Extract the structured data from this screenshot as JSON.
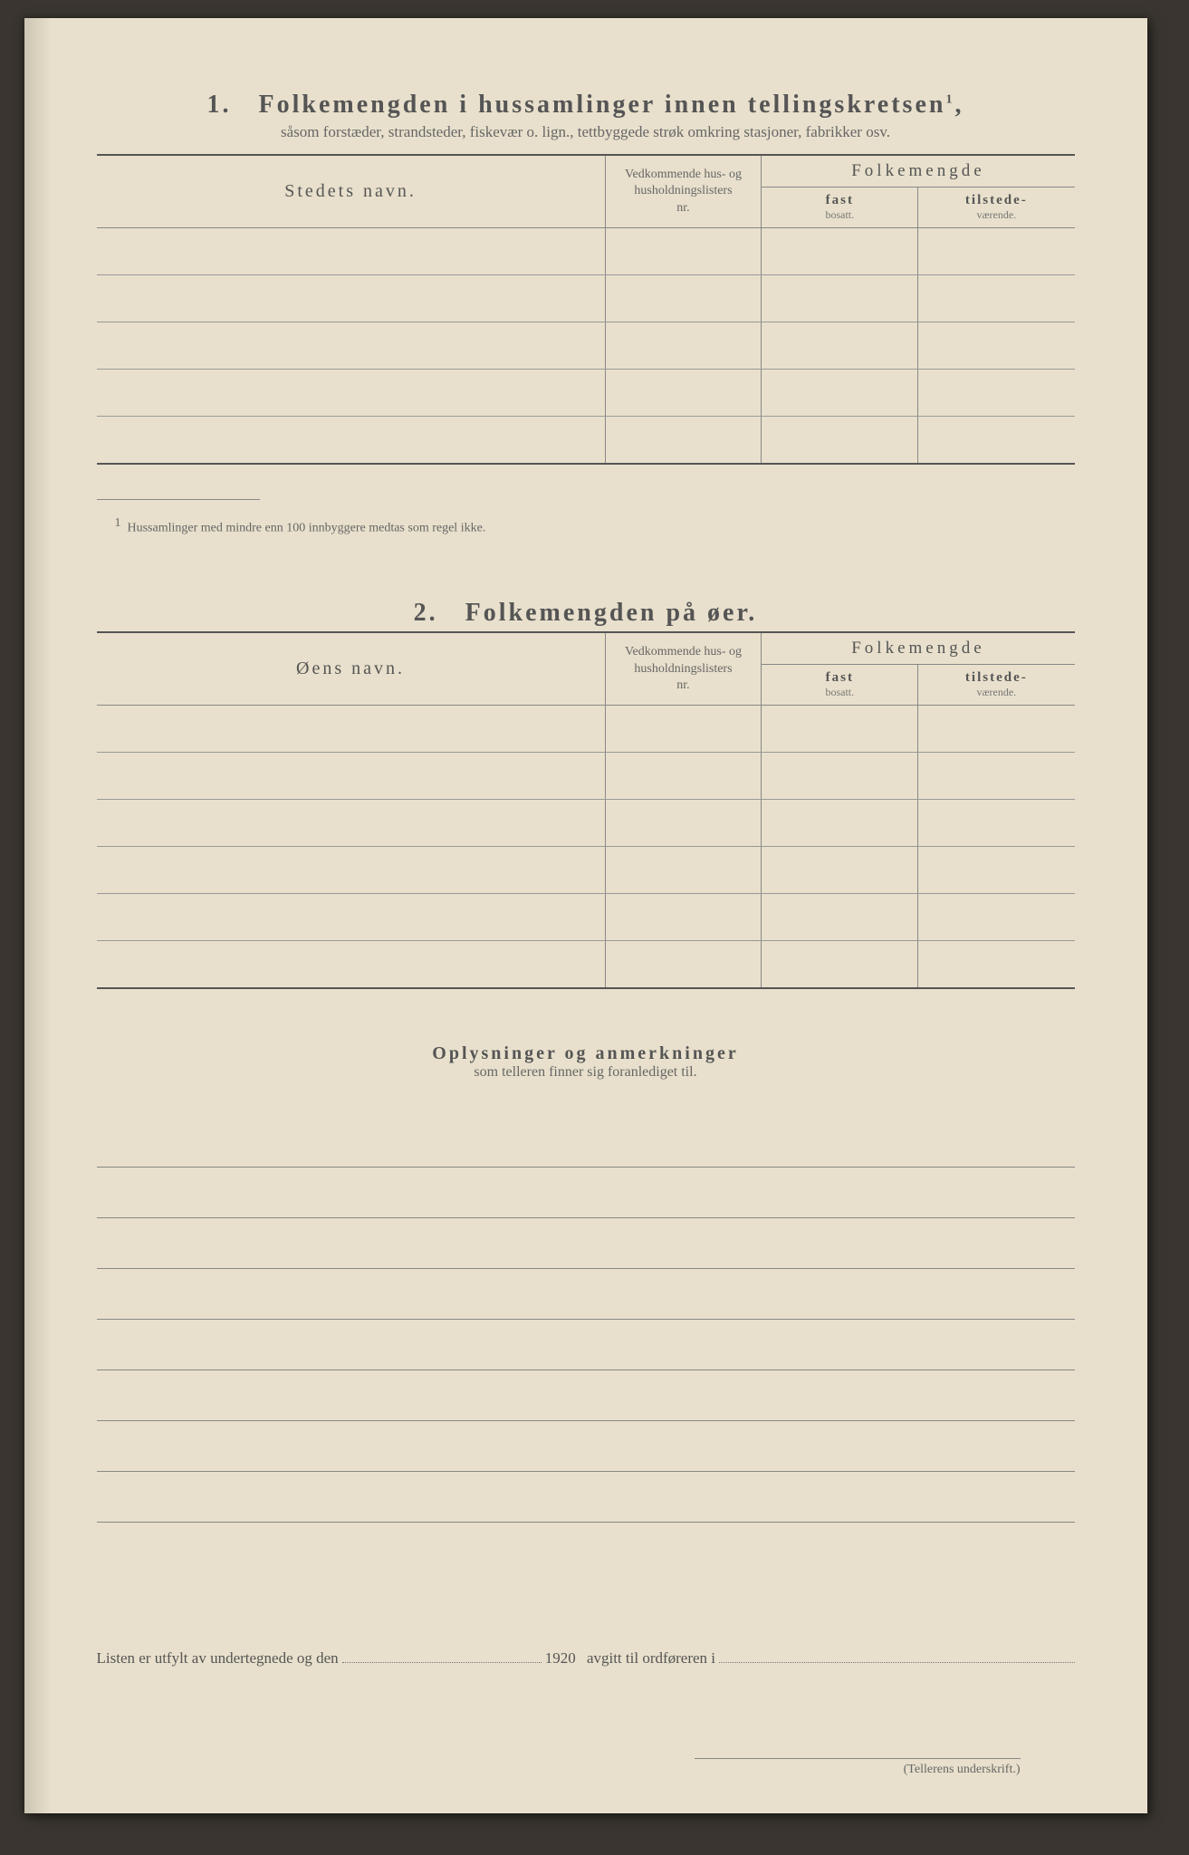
{
  "section1": {
    "number": "1.",
    "title": "Folkemengden i hussamlinger innen tellingskretsen",
    "title_sup": "1",
    "subtitle": "såsom forstæder, strandsteder, fiskevær o. lign., tettbyggede strøk omkring stasjoner, fabrikker osv.",
    "col_name": "Stedets navn.",
    "col_ref_l1": "Vedkommende hus- og",
    "col_ref_l2": "husholdningslisters",
    "col_ref_l3": "nr.",
    "col_folk": "Folkemengde",
    "col_fast": "fast",
    "col_fast_sub": "bosatt.",
    "col_til": "tilstede-",
    "col_til_sub": "værende.",
    "footnote_mark": "1",
    "footnote": "Hussamlinger med mindre enn 100 innbyggere medtas som regel ikke.",
    "row_count": 5
  },
  "section2": {
    "number": "2.",
    "title": "Folkemengden på øer.",
    "col_name": "Øens navn.",
    "col_ref_l1": "Vedkommende hus- og",
    "col_ref_l2": "husholdningslisters",
    "col_ref_l3": "nr.",
    "col_folk": "Folkemengde",
    "col_fast": "fast",
    "col_fast_sub": "bosatt.",
    "col_til": "tilstede-",
    "col_til_sub": "værende.",
    "row_count": 6
  },
  "oply": {
    "title": "Oplysninger og anmerkninger",
    "subtitle": "som telleren finner sig foranlediget til.",
    "line_count": 8
  },
  "bottom": {
    "pre": "Listen er utfylt av undertegnede og den",
    "year": "1920",
    "post": "avgitt til ordføreren i",
    "signature_label": "(Tellerens underskrift.)"
  },
  "style": {
    "paper_color": "#e8e0cc",
    "text_color": "#4a4a42",
    "rule_color": "#555555"
  }
}
